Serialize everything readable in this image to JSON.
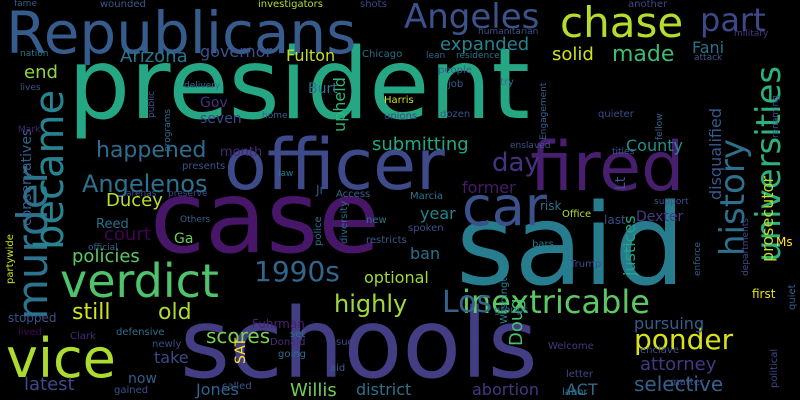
{
  "words": [
    {
      "text": "president",
      "color": "#26a784"
    },
    {
      "text": "said",
      "color": "#277d8e"
    },
    {
      "text": "schools",
      "color": "#433d84"
    },
    {
      "text": "case",
      "color": "#481668"
    },
    {
      "text": "Republicans",
      "color": "#365c8d"
    },
    {
      "text": "officer",
      "color": "#3e4a89"
    },
    {
      "text": "fired",
      "color": "#481e6f"
    },
    {
      "text": "vice",
      "color": "#addc30"
    },
    {
      "text": "verdict",
      "color": "#4ec36b"
    },
    {
      "text": "chase",
      "color": "#b5de2b"
    },
    {
      "text": "inextricable",
      "color": "#5cc863"
    },
    {
      "text": "murder",
      "color": "#2c738e"
    },
    {
      "text": "became",
      "color": "#26838f"
    },
    {
      "text": "car",
      "color": "#3b518b"
    },
    {
      "text": "Angeles",
      "color": "#3b528b"
    },
    {
      "text": "part",
      "color": "#3f4889"
    },
    {
      "text": "history",
      "color": "#2d708e"
    },
    {
      "text": "universities",
      "color": "#2db27d"
    },
    {
      "text": "Angelenos",
      "color": "#2c718e"
    },
    {
      "text": "happened",
      "color": "#2e6d8e"
    },
    {
      "text": "1990s",
      "color": "#31668e"
    },
    {
      "text": "Los",
      "color": "#33638d"
    },
    {
      "text": "highly",
      "color": "#a0da39"
    },
    {
      "text": "ponder",
      "color": "#d8e219"
    },
    {
      "text": "expanded",
      "color": "#26828e"
    },
    {
      "text": "solid",
      "color": "#d2e21b"
    },
    {
      "text": "made",
      "color": "#3dbc74"
    },
    {
      "text": "Fani",
      "color": "#2d708e"
    },
    {
      "text": "policies",
      "color": "#5ec962"
    },
    {
      "text": "still",
      "color": "#d2e21b"
    },
    {
      "text": "old",
      "color": "#addc30"
    },
    {
      "text": "scores",
      "color": "#7ad151"
    },
    {
      "text": "day",
      "color": "#46337f"
    },
    {
      "text": "court",
      "color": "#440154"
    },
    {
      "text": "Ducey",
      "color": "#b8de29"
    },
    {
      "text": "selective",
      "color": "#34618d"
    },
    {
      "text": "pursuing",
      "color": "#365d8d"
    },
    {
      "text": "attorney",
      "color": "#453882"
    },
    {
      "text": "Doug",
      "color": "#46c06f"
    },
    {
      "text": "Willis",
      "color": "#6ece58"
    },
    {
      "text": "district",
      "color": "#2d718e"
    },
    {
      "text": "abortion",
      "color": "#453882"
    },
    {
      "text": "ACT",
      "color": "#2f6b8e"
    },
    {
      "text": "latest",
      "color": "#3e4989"
    },
    {
      "text": "Jones",
      "color": "#33628d"
    },
    {
      "text": "optional",
      "color": "#9fda3a"
    },
    {
      "text": "take",
      "color": "#3e4989"
    },
    {
      "text": "end",
      "color": "#8bd646"
    },
    {
      "text": "Arizona",
      "color": "#2a768e"
    },
    {
      "text": "Fulton",
      "color": "#c0df25"
    },
    {
      "text": "governor",
      "color": "#3b518b"
    },
    {
      "text": "upheld",
      "color": "#32b67a"
    },
    {
      "text": "submitting",
      "color": "#22a884"
    },
    {
      "text": "County",
      "color": "#21918c"
    },
    {
      "text": "justices",
      "color": "#21a685"
    },
    {
      "text": "prosecutor",
      "color": "#c2df23"
    },
    {
      "text": "disqualified",
      "color": "#38588c"
    },
    {
      "text": "former",
      "color": "#481a6c"
    },
    {
      "text": "year",
      "color": "#25838e"
    },
    {
      "text": "ban",
      "color": "#2e6f8e"
    },
    {
      "text": "Dexter",
      "color": "#443b84"
    },
    {
      "text": "seven",
      "color": "#3e4989"
    },
    {
      "text": "Gov",
      "color": "#46327e"
    },
    {
      "text": "Burt",
      "color": "#2b758e"
    },
    {
      "text": "Lt",
      "color": "#3a548c"
    },
    {
      "text": "conservatives",
      "color": "#34618d"
    },
    {
      "text": "month",
      "color": "#482576"
    },
    {
      "text": "Ga",
      "color": "#6ccd5a"
    },
    {
      "text": "Reed",
      "color": "#2d708e"
    },
    {
      "text": "SAT",
      "color": "#fde725"
    },
    {
      "text": "Fuhrman",
      "color": "#482071"
    },
    {
      "text": "Jr",
      "color": "#375b8d"
    },
    {
      "text": "risk",
      "color": "#2e6e8e"
    },
    {
      "text": "last",
      "color": "#3e4a89"
    },
    {
      "text": "first",
      "color": "#e5e419"
    },
    {
      "text": "Ms",
      "color": "#fde725"
    },
    {
      "text": "stopped",
      "color": "#3b528b"
    },
    {
      "text": "partywide",
      "color": "#c8e020"
    },
    {
      "text": "lived",
      "color": "#46085c"
    },
    {
      "text": "Clark",
      "color": "#482878"
    },
    {
      "text": "now",
      "color": "#365c8d"
    },
    {
      "text": "gained",
      "color": "#3b518b"
    },
    {
      "text": "called",
      "color": "#39568c"
    },
    {
      "text": "going",
      "color": "#2f6c8e"
    },
    {
      "text": "issue",
      "color": "#3f4788"
    },
    {
      "text": "aid",
      "color": "#355f8d"
    },
    {
      "text": "Donald",
      "color": "#472d7b"
    },
    {
      "text": "set",
      "color": "#2e6e8e"
    },
    {
      "text": "police",
      "color": "#2c738e"
    },
    {
      "text": "diversity",
      "color": "#31678e"
    },
    {
      "text": "Marcia",
      "color": "#2c728e"
    },
    {
      "text": "spoken",
      "color": "#3b528b"
    },
    {
      "text": "Washington",
      "color": "#25858e"
    },
    {
      "text": "bars",
      "color": "#2a778e"
    },
    {
      "text": "Trump",
      "color": "#3e4989"
    },
    {
      "text": "Welcome",
      "color": "#453781"
    },
    {
      "text": "groups",
      "color": "#2c718e"
    },
    {
      "text": "labor",
      "color": "#2c728e"
    },
    {
      "text": "letter",
      "color": "#3e4989"
    },
    {
      "text": "matter",
      "color": "#3d4e8a"
    },
    {
      "text": "enclave",
      "color": "#3a538b"
    },
    {
      "text": "political",
      "color": "#3f4889"
    },
    {
      "text": "quiet",
      "color": "#355e8d"
    },
    {
      "text": "wounded",
      "color": "#38598c"
    },
    {
      "text": "investigators",
      "color": "#b5de2b"
    },
    {
      "text": "shots",
      "color": "#3e4989"
    },
    {
      "text": "fame",
      "color": "#365d8d"
    },
    {
      "text": "another",
      "color": "#3e4989"
    },
    {
      "text": "humanitarian",
      "color": "#3b528b"
    },
    {
      "text": "military",
      "color": "#453781"
    },
    {
      "text": "nation",
      "color": "#2c728e"
    },
    {
      "text": "lives",
      "color": "#3b528b"
    },
    {
      "text": "Mark",
      "color": "#482173"
    },
    {
      "text": "public",
      "color": "#38588c"
    },
    {
      "text": "programs",
      "color": "#306a8e"
    },
    {
      "text": "delivery",
      "color": "#306a8e"
    },
    {
      "text": "home",
      "color": "#31678e"
    },
    {
      "text": "presents",
      "color": "#3b518b"
    },
    {
      "text": "preserve",
      "color": "#3e4989"
    },
    {
      "text": "arenas",
      "color": "#3b528b"
    },
    {
      "text": "Others",
      "color": "#35608d"
    },
    {
      "text": "official",
      "color": "#33638d"
    },
    {
      "text": "law",
      "color": "#2a788e"
    },
    {
      "text": "Chicago",
      "color": "#2f6c8e"
    },
    {
      "text": "Harris",
      "color": "#d0e11c"
    },
    {
      "text": "unions",
      "color": "#3e4989"
    },
    {
      "text": "dozen",
      "color": "#3b528b"
    },
    {
      "text": "job",
      "color": "#355f8d"
    },
    {
      "text": "people",
      "color": "#355e8d"
    },
    {
      "text": "residence",
      "color": "#2b758e"
    },
    {
      "text": "try",
      "color": "#2e6e8e"
    },
    {
      "text": "lean",
      "color": "#32648e"
    },
    {
      "text": "Engagement",
      "color": "#34608d"
    },
    {
      "text": "quieter",
      "color": "#3d4e8a"
    },
    {
      "text": "titles",
      "color": "#38588c"
    },
    {
      "text": "fellow",
      "color": "#32658e"
    },
    {
      "text": "attack",
      "color": "#38598c"
    },
    {
      "text": "renaming",
      "color": "#3b528b"
    },
    {
      "text": "support",
      "color": "#3b528b"
    },
    {
      "text": "enforce",
      "color": "#35608d"
    },
    {
      "text": "departments",
      "color": "#3e4989"
    },
    {
      "text": "Office",
      "color": "#b5de2b"
    },
    {
      "text": "enslaved",
      "color": "#3b528b"
    },
    {
      "text": "Access",
      "color": "#31688e"
    },
    {
      "text": "new",
      "color": "#2c728e"
    },
    {
      "text": "restricts",
      "color": "#38598c"
    },
    {
      "text": "defensive",
      "color": "#2e6d8e"
    },
    {
      "text": "newly",
      "color": "#3e4989"
    }
  ]
}
